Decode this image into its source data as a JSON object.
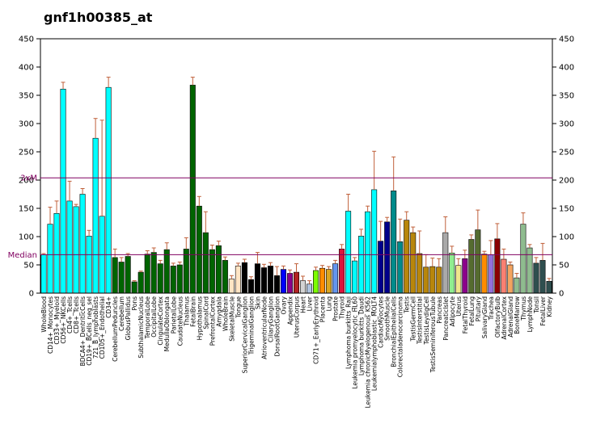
{
  "title": "gnf1h00385_at",
  "chart_data": {
    "type": "bar",
    "title": "gnf1h00385_at",
    "ylim": [
      0,
      450
    ],
    "yticks": [
      0,
      50,
      100,
      150,
      200,
      250,
      300,
      350,
      400,
      450
    ],
    "reference_lines": [
      {
        "label": "3xM",
        "value": 204,
        "color": "#800060"
      },
      {
        "label": "Median",
        "value": 68,
        "color": "#800060"
      }
    ],
    "categories": [
      "WholeBlood",
      "CD14+_Monocytes",
      "CD33+_Myeloid",
      "CD56+_NKCells",
      "CD4+_Tcells",
      "CD8+_Tcells",
      "BDCA4+_DentriticCells",
      "CD19+_BCells_neg_sel",
      "721_B_lymphoblasts",
      "CD105+_Endothelial",
      "CD34+",
      "CerebellumPeduncles",
      "Cerebellum",
      "GlobusPallidus",
      "Pons",
      "SubthalamicNucleus",
      "TemporalLobe",
      "OccipitalLobe",
      "CingulateCortex",
      "MedullaOblongata",
      "ParietalLobe",
      "CaudateNucleus",
      "Thalamus",
      "FetalBrain",
      "Hypothalamus",
      "SpinalCord",
      "PrefrontalCortex",
      "Amygdala",
      "WholeBrain",
      "SkeletalMuscle",
      "Tongue",
      "SuperiorCervicalGanglion",
      "TrigeminalGanglion",
      "Skin",
      "AtrioventricularNode",
      "CiliaryGanglion",
      "DorsalRootGanglion",
      "Ovary",
      "Appendix",
      "UterusCorpus",
      "Heart",
      "Liver",
      "CD71+_EarlyErythroid",
      "Placenta",
      "Lung",
      "Prostate",
      "Thyroid",
      "Lymphoma burkitts_Raji",
      "Leukemia promyelocytic_HL60",
      "Lymphoma burkitts_Daudi",
      "Leukemia chronicMyelogenous_K562",
      "Leukemialymphoblastic_MOLT4",
      "CardiacMyocytes",
      "SmoothMuscle",
      "BronchialEpithelialCells",
      "Colorectaladenocarcinoma",
      "Testis",
      "TestisGermCell",
      "TestisInterstitial",
      "TestisLeydigCell",
      "TestisSeminiferousTubule",
      "Pancreas",
      "PancreaticIslet",
      "Adipocyte",
      "Uterus",
      "FetalThyroid",
      "FetalLung",
      "Pituitary",
      "SalivaryGland",
      "Trachea",
      "OlfactoryBulb",
      "AdrenalCortex",
      "AdrenalGland",
      "BoneMarrow",
      "Thymus",
      "LymphNode",
      "Tonsil",
      "FetalLiver",
      "Kidney"
    ],
    "values": [
      68,
      122,
      141,
      361,
      163,
      153,
      175,
      101,
      274,
      136,
      364,
      63,
      55,
      65,
      20,
      37,
      69,
      72,
      52,
      77,
      48,
      50,
      78,
      368,
      154,
      107,
      77,
      84,
      58,
      25,
      48,
      54,
      24,
      52,
      45,
      48,
      31,
      42,
      35,
      37,
      22,
      16,
      40,
      44,
      42,
      52,
      78,
      145,
      57,
      101,
      144,
      183,
      92,
      126,
      181,
      91,
      129,
      107,
      70,
      46,
      47,
      46,
      107,
      71,
      49,
      61,
      95,
      112,
      69,
      68,
      96,
      60,
      50,
      27,
      122,
      80,
      53,
      58,
      21
    ],
    "errors": [
      2,
      30,
      22,
      12,
      35,
      4,
      10,
      10,
      35,
      170,
      18,
      15,
      8,
      5,
      2,
      2,
      6,
      8,
      6,
      12,
      5,
      5,
      20,
      14,
      17,
      37,
      8,
      8,
      6,
      6,
      5,
      6,
      5,
      20,
      6,
      6,
      16,
      6,
      6,
      15,
      8,
      6,
      6,
      5,
      5,
      6,
      8,
      30,
      6,
      12,
      10,
      68,
      35,
      8,
      60,
      40,
      15,
      10,
      40,
      22,
      15,
      15,
      28,
      12,
      12,
      15,
      8,
      35,
      5,
      25,
      27,
      18,
      5,
      8,
      20,
      6,
      10,
      30,
      5
    ],
    "colors": [
      "#00ffff",
      "#00ffff",
      "#00ffff",
      "#00ffff",
      "#00ffff",
      "#00ffff",
      "#00ffff",
      "#00ffff",
      "#00ffff",
      "#00ffff",
      "#00ffff",
      "#006400",
      "#006400",
      "#006400",
      "#006400",
      "#006400",
      "#006400",
      "#006400",
      "#006400",
      "#006400",
      "#006400",
      "#006400",
      "#006400",
      "#006400",
      "#006400",
      "#006400",
      "#006400",
      "#006400",
      "#006400",
      "#ffe4c4",
      "#ffe4c4",
      "#000000",
      "#000000",
      "#000000",
      "#000000",
      "#000000",
      "#000000",
      "#0000ff",
      "#8b008b",
      "#b22222",
      "#d3d3d3",
      "#b0c4de",
      "#7cfc00",
      "#ff8c00",
      "#daa520",
      "#6495ed",
      "#dc143c",
      "#00ffff",
      "#00ffff",
      "#00ffff",
      "#00ffff",
      "#00ffff",
      "#00008b",
      "#00008b",
      "#008b8b",
      "#008b8b",
      "#b8860b",
      "#b8860b",
      "#b8860b",
      "#b8860b",
      "#b8860b",
      "#b8860b",
      "#a9a9a9",
      "#90ee90",
      "#f0e68c",
      "#8b008b",
      "#556b2f",
      "#556b2f",
      "#ff8c00",
      "#9370db",
      "#8b0000",
      "#fa8072",
      "#f4a460",
      "#8fbc8f",
      "#8fbc8f",
      "#8fbc8f",
      "#2f4f4f",
      "#2f4f4f",
      "#2f4f4f"
    ]
  }
}
